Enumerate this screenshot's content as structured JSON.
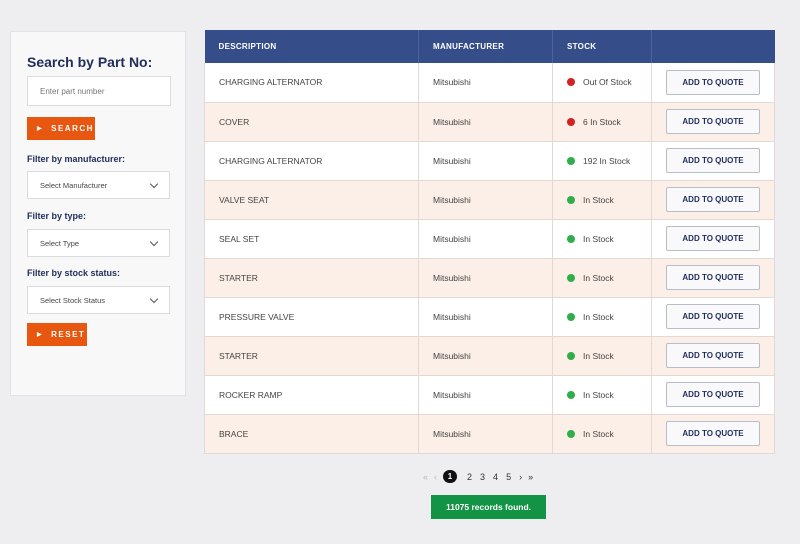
{
  "sidebar": {
    "title": "Search by Part No:",
    "part_input_placeholder": "Enter part number",
    "search_button": "SEARCH",
    "manufacturer_label": "Filter by manufacturer:",
    "manufacturer_value": "Select Manufacturer",
    "type_label": "Filter by type:",
    "type_value": "Select Type",
    "stock_label": "Filter by stock status:",
    "stock_value": "Select Stock Status",
    "reset_button": "RESET"
  },
  "table": {
    "headers": [
      "DESCRIPTION",
      "MANUFACTURER",
      "STOCK",
      ""
    ],
    "quote_label": "ADD TO QUOTE",
    "rows": [
      {
        "description": "CHARGING ALTERNATOR",
        "manufacturer": "Mitsubishi",
        "stock": "Out Of Stock",
        "status": "red"
      },
      {
        "description": "COVER",
        "manufacturer": "Mitsubishi",
        "stock": "6 In Stock",
        "status": "red"
      },
      {
        "description": "CHARGING ALTERNATOR",
        "manufacturer": "Mitsubishi",
        "stock": "192 In Stock",
        "status": "green"
      },
      {
        "description": "VALVE SEAT",
        "manufacturer": "Mitsubishi",
        "stock": "In Stock",
        "status": "green"
      },
      {
        "description": "SEAL SET",
        "manufacturer": "Mitsubishi",
        "stock": "In Stock",
        "status": "green"
      },
      {
        "description": "STARTER",
        "manufacturer": "Mitsubishi",
        "stock": "In Stock",
        "status": "green"
      },
      {
        "description": "PRESSURE VALVE",
        "manufacturer": "Mitsubishi",
        "stock": "In Stock",
        "status": "green"
      },
      {
        "description": "STARTER",
        "manufacturer": "Mitsubishi",
        "stock": "In Stock",
        "status": "green"
      },
      {
        "description": "ROCKER RAMP",
        "manufacturer": "Mitsubishi",
        "stock": "In Stock",
        "status": "green"
      },
      {
        "description": "BRACE",
        "manufacturer": "Mitsubishi",
        "stock": "In Stock",
        "status": "green"
      }
    ]
  },
  "status_colors": {
    "red": "#d32222",
    "green": "#2fae4a"
  },
  "colors": {
    "header": "#354e89",
    "accent": "#e8570f",
    "records": "#129345"
  },
  "pagination": {
    "first": "«",
    "prev": "‹",
    "current": "1",
    "pages": [
      "2",
      "3",
      "4",
      "5"
    ],
    "next": "›",
    "last": "»"
  },
  "records_text": "11075 records found."
}
